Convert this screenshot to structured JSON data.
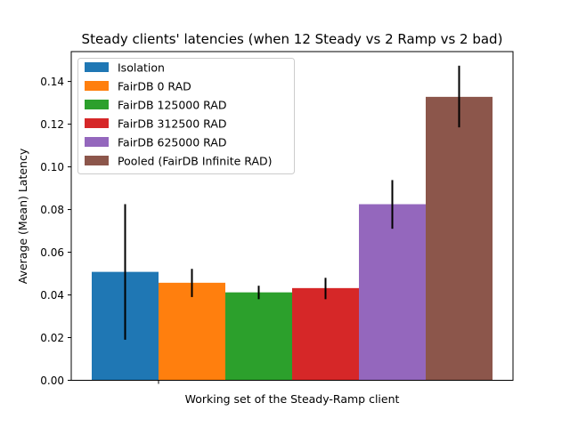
{
  "chart_data": {
    "type": "bar",
    "title": "Steady clients' latencies (when 12 Steady vs 2 Ramp vs 2 bad)",
    "xlabel": "Working set of the Steady-Ramp client",
    "ylabel": "Average (Mean) Latency",
    "ylim": [
      0,
      0.154
    ],
    "yticks": [
      "0.00",
      "0.02",
      "0.04",
      "0.06",
      "0.08",
      "0.10",
      "0.12",
      "0.14"
    ],
    "grid": false,
    "legend_position": "top-left",
    "series": [
      {
        "name": "Isolation",
        "value": 0.0508,
        "err_low": 0.019,
        "err_high": 0.0825,
        "color": "#1f77b4"
      },
      {
        "name": "FairDB 0 RAD",
        "value": 0.0457,
        "err_low": 0.039,
        "err_high": 0.0522,
        "color": "#ff7f0e"
      },
      {
        "name": "FairDB 125000 RAD",
        "value": 0.0412,
        "err_low": 0.038,
        "err_high": 0.0443,
        "color": "#2ca02c"
      },
      {
        "name": "FairDB 312500 RAD",
        "value": 0.0432,
        "err_low": 0.038,
        "err_high": 0.048,
        "color": "#d62728"
      },
      {
        "name": "FairDB 625000 RAD",
        "value": 0.0825,
        "err_low": 0.071,
        "err_high": 0.0938,
        "color": "#9467bd"
      },
      {
        "name": "Pooled (FairDB Infinite RAD)",
        "value": 0.1328,
        "err_low": 0.1185,
        "err_high": 0.1474,
        "color": "#8c564b"
      }
    ]
  }
}
